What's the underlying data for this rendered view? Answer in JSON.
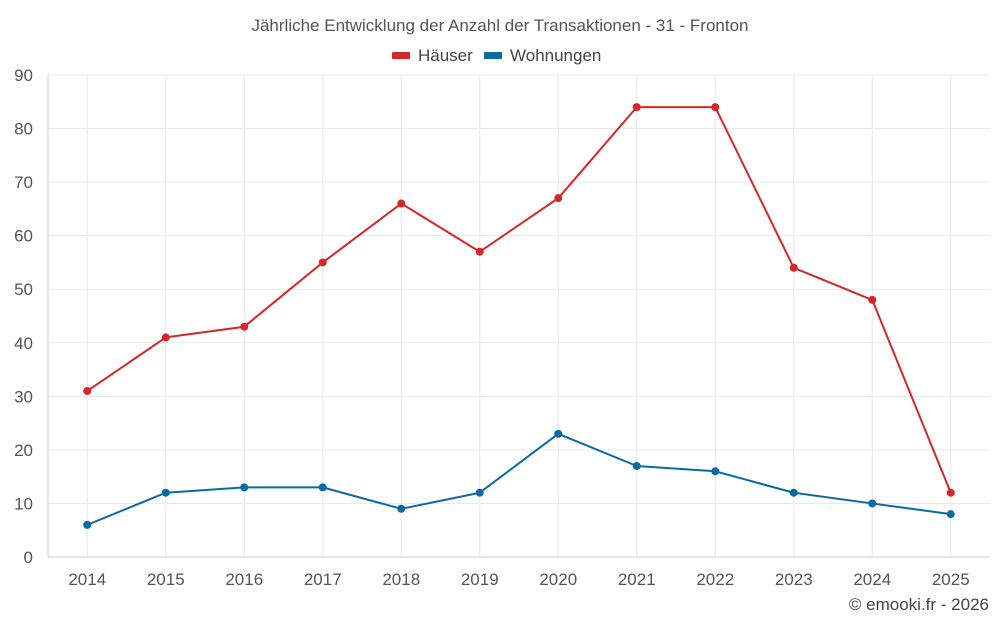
{
  "chart_data": {
    "type": "line",
    "title": "Jährliche Entwicklung der Anzahl der Transaktionen - 31 - Fronton",
    "xlabel": "",
    "ylabel": "",
    "categories": [
      "2014",
      "2015",
      "2016",
      "2017",
      "2018",
      "2019",
      "2020",
      "2021",
      "2022",
      "2023",
      "2024",
      "2025"
    ],
    "ylim": [
      0,
      90
    ],
    "yticks": [
      0,
      10,
      20,
      30,
      40,
      50,
      60,
      70,
      80,
      90
    ],
    "grid": true,
    "legend_position": "top-center",
    "series": [
      {
        "name": "Häuser",
        "color": "#d62728",
        "values": [
          31,
          41,
          43,
          55,
          66,
          57,
          67,
          84,
          84,
          54,
          48,
          12
        ]
      },
      {
        "name": "Wohnungen",
        "color": "#0b6aa2",
        "values": [
          6,
          12,
          13,
          13,
          9,
          12,
          23,
          17,
          16,
          12,
          10,
          8
        ]
      }
    ]
  },
  "credit": "© emooki.fr - 2026"
}
